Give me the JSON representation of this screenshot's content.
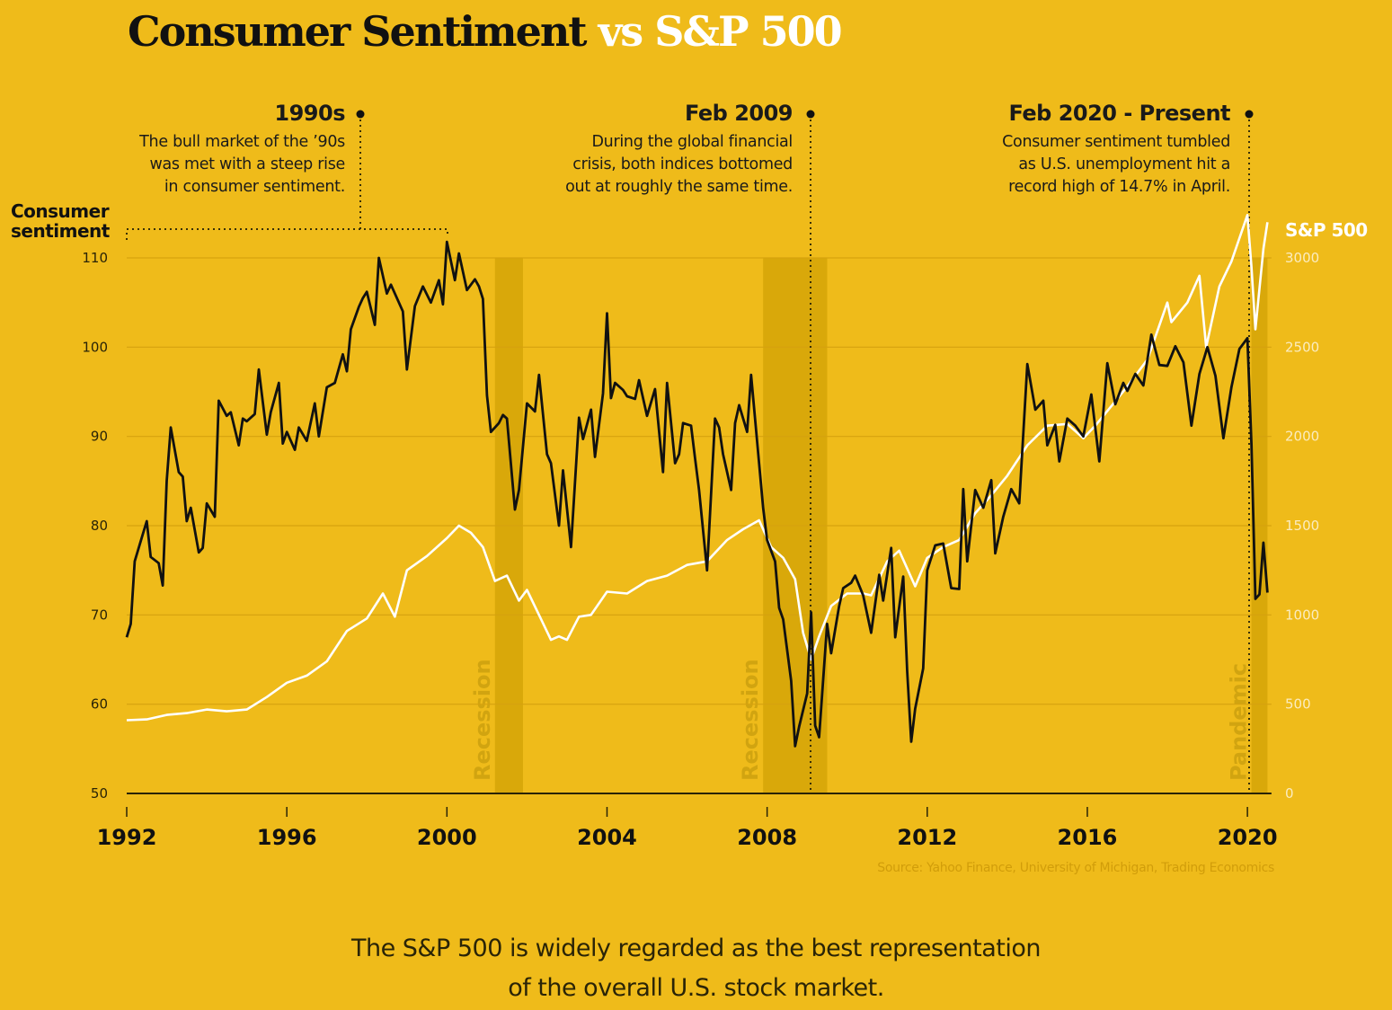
{
  "title": {
    "main": "Consumer Sentiment",
    "secondary": "vs S&P 500"
  },
  "annotations": [
    {
      "id": "1990s",
      "heading": "1990s",
      "lines": [
        "The bull market of the ’90s",
        "was met with a steep rise",
        "in consumer sentiment."
      ]
    },
    {
      "id": "feb2009",
      "heading": "Feb 2009",
      "lines": [
        "During the global financial",
        "crisis, both indices bottomed",
        "out at roughly the same time."
      ]
    },
    {
      "id": "feb2020",
      "heading": "Feb 2020 - Present",
      "lines": [
        "Consumer sentiment tumbled",
        "as U.S. unemployment hit a",
        "record high of 14.7% in April."
      ]
    }
  ],
  "source": "Source: Yahoo Finance, University of Michigan, Trading Economics",
  "footer": [
    "The S&P 500 is widely regarded as the best representation",
    "of the overall U.S. stock market."
  ],
  "colors": {
    "background": "#efbb1a",
    "band": "#d9a80a",
    "sentiment_line": "#111111",
    "sp500_line": "#ffffff",
    "grid": "#d6a20f"
  },
  "chart_data": {
    "type": "line",
    "title": "Consumer Sentiment vs S&P 500",
    "xlabel": "",
    "x_ticks": [
      "1992",
      "1996",
      "2000",
      "2004",
      "2008",
      "2012",
      "2016",
      "2020"
    ],
    "xlim": [
      1992,
      2020.6
    ],
    "y_left": {
      "label": "Consumer sentiment",
      "ticks": [
        50,
        60,
        70,
        80,
        90,
        100,
        110
      ],
      "ylim": [
        50,
        110
      ]
    },
    "y_right": {
      "label": "S&P 500",
      "ticks": [
        0,
        500,
        1000,
        1500,
        2000,
        2500,
        3000
      ],
      "ylim": [
        0,
        3000
      ]
    },
    "grid": true,
    "legend": "inline axis labels (left: Consumer sentiment, right: S&P 500)",
    "shaded_regions": [
      {
        "label": "Recession",
        "start": 2001.2,
        "end": 2001.9
      },
      {
        "label": "Recession",
        "start": 2007.9,
        "end": 2009.5
      },
      {
        "label": "Pandemic",
        "start": 2020.1,
        "end": 2020.5
      }
    ],
    "annotation_markers": [
      {
        "label": "1990s",
        "x": 1997.9,
        "span": [
          1992,
          2000.0
        ]
      },
      {
        "label": "Feb 2009",
        "x": 2009.1
      },
      {
        "label": "Feb 2020 - Present",
        "x": 2020.1
      }
    ],
    "series": [
      {
        "name": "Consumer sentiment",
        "axis": "left",
        "x": [
          1992.0,
          1992.1,
          1992.2,
          1992.4,
          1992.5,
          1992.6,
          1992.8,
          1992.9,
          1993.0,
          1993.1,
          1993.3,
          1993.4,
          1993.5,
          1993.6,
          1993.8,
          1993.9,
          1994.0,
          1994.2,
          1994.3,
          1994.5,
          1994.6,
          1994.8,
          1994.9,
          1995.0,
          1995.2,
          1995.3,
          1995.5,
          1995.6,
          1995.8,
          1995.9,
          1996.0,
          1996.2,
          1996.3,
          1996.5,
          1996.7,
          1996.8,
          1997.0,
          1997.2,
          1997.4,
          1997.5,
          1997.6,
          1997.8,
          1997.9,
          1998.0,
          1998.2,
          1998.3,
          1998.5,
          1998.6,
          1998.8,
          1998.9,
          1999.0,
          1999.2,
          1999.4,
          1999.6,
          1999.8,
          1999.9,
          2000.0,
          2000.2,
          2000.3,
          2000.5,
          2000.7,
          2000.8,
          2000.9,
          2001.0,
          2001.1,
          2001.3,
          2001.4,
          2001.5,
          2001.7,
          2001.8,
          2002.0,
          2002.2,
          2002.3,
          2002.5,
          2002.6,
          2002.8,
          2002.9,
          2003.1,
          2003.3,
          2003.4,
          2003.6,
          2003.7,
          2003.9,
          2004.0,
          2004.1,
          2004.2,
          2004.4,
          2004.5,
          2004.7,
          2004.8,
          2005.0,
          2005.2,
          2005.4,
          2005.5,
          2005.7,
          2005.8,
          2005.9,
          2006.1,
          2006.2,
          2006.3,
          2006.5,
          2006.7,
          2006.8,
          2006.9,
          2007.1,
          2007.2,
          2007.3,
          2007.5,
          2007.6,
          2007.8,
          2007.9,
          2008.0,
          2008.2,
          2008.3,
          2008.4,
          2008.6,
          2008.7,
          2008.8,
          2009.0,
          2009.1,
          2009.2,
          2009.3,
          2009.5,
          2009.6,
          2009.8,
          2009.9,
          2010.1,
          2010.2,
          2010.4,
          2010.6,
          2010.8,
          2010.9,
          2011.1,
          2011.2,
          2011.4,
          2011.5,
          2011.6,
          2011.7,
          2011.9,
          2012.0,
          2012.2,
          2012.4,
          2012.6,
          2012.8,
          2012.9,
          2013.0,
          2013.2,
          2013.4,
          2013.6,
          2013.7,
          2013.9,
          2014.1,
          2014.3,
          2014.5,
          2014.7,
          2014.9,
          2015.0,
          2015.2,
          2015.3,
          2015.5,
          2015.7,
          2015.9,
          2016.1,
          2016.3,
          2016.5,
          2016.7,
          2016.9,
          2017.0,
          2017.2,
          2017.4,
          2017.6,
          2017.8,
          2018.0,
          2018.2,
          2018.4,
          2018.6,
          2018.8,
          2019.0,
          2019.2,
          2019.4,
          2019.6,
          2019.8,
          2020.0,
          2020.1,
          2020.2,
          2020.3,
          2020.4,
          2020.5
        ],
        "values": [
          67.5,
          69,
          76,
          79,
          80.5,
          76.5,
          75.8,
          73.3,
          85,
          91,
          86,
          85.5,
          80.5,
          82,
          77,
          77.5,
          82.5,
          81,
          94,
          92.3,
          92.7,
          89,
          92,
          91.7,
          92.5,
          97.5,
          90.2,
          92.7,
          96,
          89.2,
          90.5,
          88.5,
          91,
          89.5,
          93.7,
          90,
          95.5,
          96,
          99.2,
          97.3,
          102,
          104.5,
          105.5,
          106.2,
          102.5,
          110,
          106,
          107,
          105,
          104,
          97.5,
          104.6,
          106.8,
          105,
          107.5,
          104.8,
          111.8,
          107.5,
          110.5,
          106.4,
          107.6,
          106.8,
          105.4,
          94.6,
          90.5,
          91.5,
          92.4,
          92,
          81.8,
          84,
          93.7,
          92.8,
          96.9,
          88,
          87,
          80,
          86.2,
          77.6,
          92.1,
          89.7,
          93,
          87.7,
          94.8,
          103.8,
          94.3,
          96,
          95.2,
          94.5,
          94.2,
          96.3,
          92.3,
          95.3,
          86,
          96,
          87,
          88,
          91.5,
          91.2,
          87.5,
          84,
          75,
          92,
          91,
          88,
          84,
          91.5,
          93.5,
          90.5,
          96.9,
          87,
          82,
          78.4,
          76,
          70.8,
          69.5,
          62.6,
          55.3,
          57.5,
          61.2,
          70.3,
          57.6,
          56.3,
          69,
          65.7,
          71,
          73,
          73.6,
          74.4,
          72.2,
          68,
          74.5,
          71.6,
          77.5,
          67.5,
          74.3,
          63.7,
          55.8,
          59.5,
          64,
          75,
          77.8,
          78,
          73,
          72.9,
          84.1,
          76,
          84,
          82,
          85.1,
          76.9,
          81,
          84.1,
          82.5,
          98.1,
          93,
          94,
          89,
          91.3,
          87.2,
          92,
          91.2,
          90,
          94.7,
          87.2,
          98.2,
          93.6,
          96,
          95.1,
          97,
          95.7,
          101.4,
          98,
          97.9,
          100.1,
          98.3,
          91.2,
          97,
          100,
          96.8,
          89.8,
          95.5,
          99.8,
          101,
          89.1,
          71.8,
          72.3,
          78.1,
          72.5
        ]
      },
      {
        "name": "S&P 500",
        "axis": "right",
        "x": [
          1992.0,
          1992.5,
          1993.0,
          1993.5,
          1994.0,
          1994.5,
          1995.0,
          1995.5,
          1996.0,
          1996.5,
          1997.0,
          1997.5,
          1998.0,
          1998.4,
          1998.7,
          1999.0,
          1999.5,
          2000.0,
          2000.3,
          2000.6,
          2000.9,
          2001.2,
          2001.5,
          2001.8,
          2002.0,
          2002.3,
          2002.6,
          2002.8,
          2003.0,
          2003.3,
          2003.6,
          2004.0,
          2004.5,
          2005.0,
          2005.5,
          2006.0,
          2006.5,
          2007.0,
          2007.4,
          2007.8,
          2008.1,
          2008.4,
          2008.7,
          2008.9,
          2009.1,
          2009.3,
          2009.6,
          2010.0,
          2010.4,
          2010.6,
          2011.0,
          2011.3,
          2011.7,
          2012.0,
          2012.4,
          2012.8,
          2013.2,
          2013.6,
          2014.0,
          2014.5,
          2015.0,
          2015.5,
          2015.9,
          2016.2,
          2016.6,
          2017.0,
          2017.5,
          2018.0,
          2018.1,
          2018.5,
          2018.8,
          2018.97,
          2019.3,
          2019.6,
          2020.0,
          2020.1,
          2020.2,
          2020.4,
          2020.5
        ],
        "values": [
          410,
          415,
          440,
          450,
          470,
          460,
          470,
          540,
          620,
          660,
          740,
          910,
          980,
          1120,
          990,
          1250,
          1330,
          1430,
          1500,
          1460,
          1380,
          1190,
          1220,
          1080,
          1140,
          1000,
          860,
          880,
          860,
          990,
          1000,
          1130,
          1120,
          1190,
          1220,
          1280,
          1300,
          1420,
          1480,
          1530,
          1380,
          1320,
          1200,
          900,
          750,
          880,
          1050,
          1120,
          1120,
          1110,
          1300,
          1360,
          1160,
          1320,
          1380,
          1420,
          1570,
          1670,
          1780,
          1950,
          2060,
          2070,
          1990,
          2060,
          2170,
          2280,
          2430,
          2750,
          2640,
          2750,
          2900,
          2500,
          2840,
          2980,
          3240,
          2950,
          2600,
          3050,
          3200
        ]
      }
    ]
  }
}
